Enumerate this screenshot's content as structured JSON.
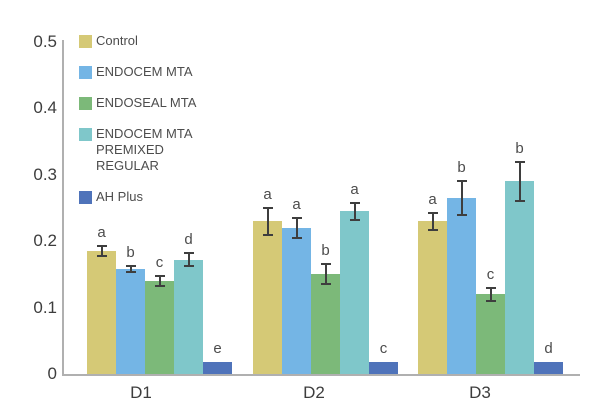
{
  "chart_data": {
    "type": "bar",
    "title": "",
    "xlabel": "",
    "ylabel": "",
    "categories": [
      "D1",
      "D2",
      "D3"
    ],
    "y_ticks": [
      "0.5",
      "0.4",
      "0.3",
      "0.2",
      "0.1",
      "0"
    ],
    "ylim": [
      0,
      0.5
    ],
    "grid": false,
    "legend_position": "upper-left-inside",
    "error_bars": true,
    "series": [
      {
        "name": "Control",
        "legend_lines": [
          "Control"
        ],
        "color": "#d5c976",
        "values": [
          0.185,
          0.23,
          0.23
        ],
        "errors": [
          0.008,
          0.02,
          0.013
        ],
        "letters": [
          "a",
          "a",
          "a"
        ]
      },
      {
        "name": "ENDOCEM MTA",
        "legend_lines": [
          "ENDOCEM MTA"
        ],
        "color": "#74b5e5",
        "values": [
          0.158,
          0.22,
          0.265
        ],
        "errors": [
          0.005,
          0.015,
          0.026
        ],
        "letters": [
          "b",
          "a",
          "b"
        ]
      },
      {
        "name": "ENDOSEAL MTA",
        "legend_lines": [
          "ENDOSEAL MTA"
        ],
        "color": "#7cb979",
        "values": [
          0.14,
          0.15,
          0.12
        ],
        "errors": [
          0.007,
          0.015,
          0.01
        ],
        "letters": [
          "c",
          "b",
          "c"
        ]
      },
      {
        "name": "ENDOCEM MTA PREMIXED REGULAR",
        "legend_lines": [
          "ENDOCEM MTA",
          "PREMIXED",
          "REGULAR"
        ],
        "color": "#7fc7ca",
        "values": [
          0.172,
          0.245,
          0.29
        ],
        "errors": [
          0.01,
          0.013,
          0.03
        ],
        "letters": [
          "d",
          "a",
          "b"
        ]
      },
      {
        "name": "AH Plus",
        "legend_lines": [
          "AH Plus"
        ],
        "color": "#4f73ba",
        "values": [
          0.018,
          0.018,
          0.018
        ],
        "errors": [
          0,
          0,
          0
        ],
        "letters": [
          "e",
          "c",
          "d"
        ]
      }
    ]
  },
  "colors": {
    "axis": "#b0b0b0",
    "tick_text": "#3d3d3d",
    "letter_text": "#4c4c4c",
    "error_bar": "#3e3e3e",
    "background": "#ffffff"
  }
}
